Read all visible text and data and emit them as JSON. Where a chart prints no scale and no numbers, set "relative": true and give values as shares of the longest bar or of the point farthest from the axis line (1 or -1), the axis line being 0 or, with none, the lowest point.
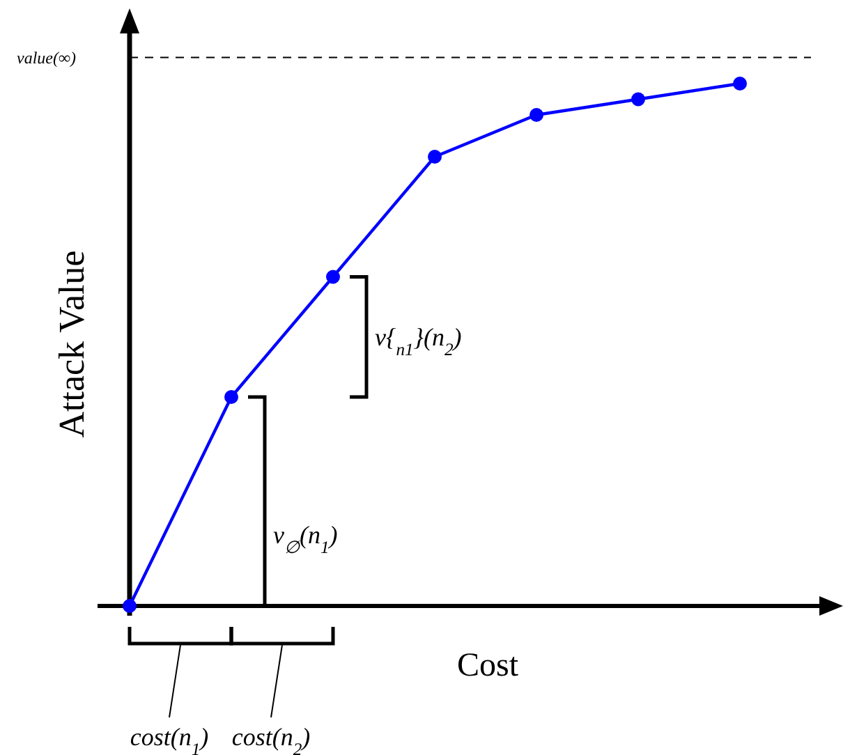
{
  "chart_data": {
    "type": "line",
    "xlabel": "Cost",
    "ylabel": "Attack Value",
    "relative": true,
    "marker": "circle",
    "line_style": "solid",
    "categories": [
      null,
      null,
      null,
      null,
      null,
      null,
      null
    ],
    "series": [
      {
        "color": "#0000ff",
        "values": [
          0,
          0.4,
          0.63,
          0.86,
          0.94,
          0.97,
          1
        ]
      }
    ],
    "ref_lines": [
      {
        "axis": "y",
        "value": 1.05,
        "label": "value(∞)",
        "line_style": "dashed",
        "color": "#000000"
      }
    ],
    "annotations": [
      "v$_{∅}$(n$_{1}$)",
      "v{$_{n1}$}(n$_{2}$)",
      "cost(n$_{1}$)",
      "cost(n$_{2}$)"
    ]
  }
}
